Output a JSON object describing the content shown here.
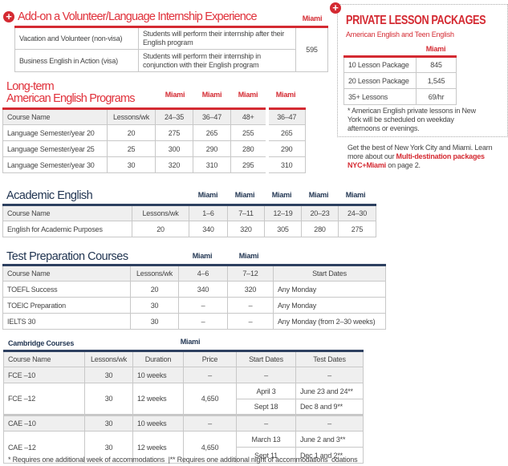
{
  "internship": {
    "title": "Add-on a Volunteer/Language Internship Experience",
    "city": "Miami",
    "price": "595",
    "rows": [
      [
        "Vacation and Volunteer (non-visa)",
        "Students will perform their internship after their English program"
      ],
      [
        "Business English in Action (visa)",
        "Students will perform their internship in conjunction with their English program"
      ]
    ]
  },
  "longterm": {
    "title_line1": "Long-term",
    "title_line2": "American English Programs",
    "cities": [
      "Miami",
      "Miami",
      "Miami",
      "Miami"
    ],
    "header": [
      "Course Name",
      "Lessons/wk",
      "24–35",
      "36–47",
      "48+",
      "36–47"
    ],
    "rows": [
      [
        "Language Semester/year 20",
        "20",
        "275",
        "265",
        "255",
        "265"
      ],
      [
        "Language Semester/year 25",
        "25",
        "300",
        "290",
        "280",
        "290"
      ],
      [
        "Language Semester/year 30",
        "30",
        "320",
        "310",
        "295",
        "310"
      ]
    ]
  },
  "academic": {
    "title": "Academic English",
    "cities": [
      "Miami",
      "Miami",
      "Miami",
      "Miami",
      "Miami"
    ],
    "header": [
      "Course Name",
      "Lessons/wk",
      "1–6",
      "7–11",
      "12–19",
      "20–23",
      "24–30"
    ],
    "rows": [
      [
        "English for Academic Purposes",
        "20",
        "340",
        "320",
        "305",
        "280",
        "275"
      ]
    ]
  },
  "testprep": {
    "title": "Test Preparation Courses",
    "cities": [
      "Miami",
      "Miami"
    ],
    "header": [
      "Course Name",
      "Lessons/wk",
      "4–6",
      "7–12",
      "Start Dates"
    ],
    "rows": [
      [
        "TOEFL Success",
        "20",
        "340",
        "320",
        "Any Monday"
      ],
      [
        "TOEIC Preparation",
        "30",
        "–",
        "–",
        "Any Monday"
      ],
      [
        "IELTS 30",
        "30",
        "–",
        "–",
        "Any Monday (from 2–30 weeks)"
      ]
    ]
  },
  "cambridge": {
    "title": "Cambridge Courses",
    "city": "Miami",
    "header": [
      "Course Name",
      "Lessons/wk",
      "Duration",
      "Price",
      "Start Dates",
      "Test Dates"
    ],
    "fce10": [
      "FCE –10",
      "30",
      "10 weeks",
      "–",
      "–",
      "–"
    ],
    "fce12": {
      "name": "FCE –12",
      "lessons": "30",
      "duration": "12 weeks",
      "price": "4,650",
      "dates": [
        [
          "April 3",
          "June 23 and 24**"
        ],
        [
          "Sept 18",
          "Dec 8 and 9**"
        ]
      ]
    },
    "cae10": [
      "CAE –10",
      "30",
      "10 weeks",
      "–",
      "–",
      "–"
    ],
    "cae12": {
      "name": "CAE –12",
      "lessons": "30",
      "duration": "12 weeks",
      "price": "4,650",
      "dates": [
        [
          "March 13",
          "June 2 and 3**"
        ],
        [
          "Sept 11",
          "Dec 1 and 2**"
        ]
      ]
    },
    "footnote": "* Requires one additional week of accommodations  |** Requires one additional night of accommodations  odations"
  },
  "private": {
    "title": "PRIVATE LESSON PACKAGES",
    "subtitle": "American English and Teen English",
    "city": "Miami",
    "rows": [
      [
        "10 Lesson Package",
        "845"
      ],
      [
        "20 Lesson Package",
        "1,545"
      ],
      [
        "35+ Lessons",
        "69/hr"
      ]
    ],
    "note": "* American English private lessons in New York will be scheduled on weekday afternoons or evenings.",
    "promo_pre": "Get the best of New York City and Miami. Learn more about our ",
    "promo_link": "Multi-destination packages NYC+Miami",
    "promo_post": " on page 2."
  },
  "colors": {
    "red": "#d42a32",
    "navy": "#1f3350"
  }
}
